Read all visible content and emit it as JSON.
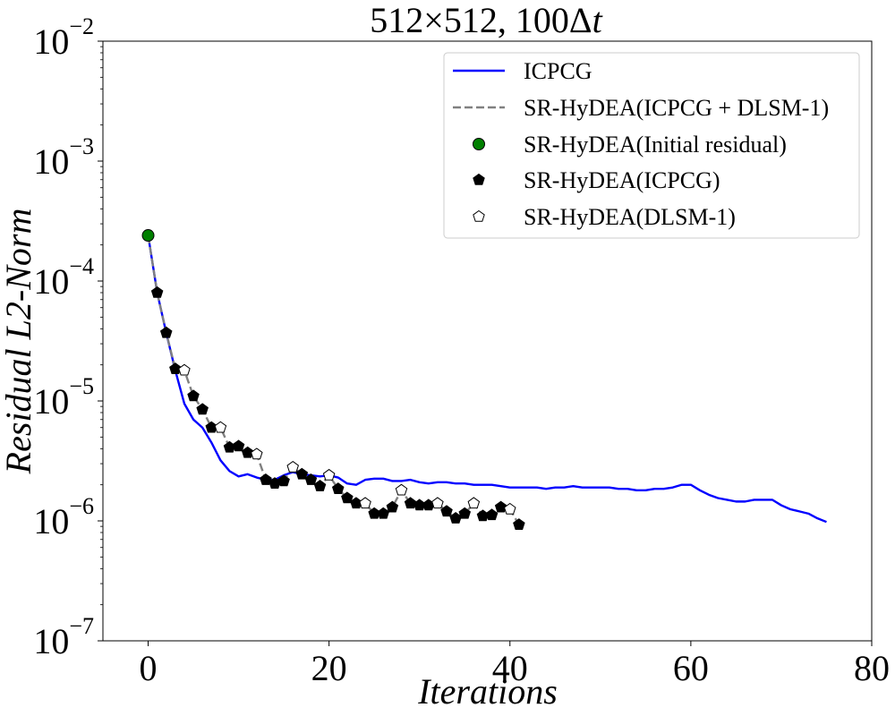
{
  "chart_data": {
    "type": "line",
    "title": "512×512, 100Δt",
    "xlabel": "Iterations",
    "ylabel": "Residual L2-Norm",
    "xlim": [
      -5,
      80
    ],
    "ylim": [
      1e-07,
      0.01
    ],
    "yscale": "log",
    "x_ticks": [
      0,
      20,
      40,
      60,
      80
    ],
    "x_tick_labels": [
      "0",
      "20",
      "40",
      "60",
      "80"
    ],
    "y_ticks": [
      {
        "value": 1e-07,
        "base": "10",
        "exp": "−7"
      },
      {
        "value": 1e-06,
        "base": "10",
        "exp": "−6"
      },
      {
        "value": 1e-05,
        "base": "10",
        "exp": "−5"
      },
      {
        "value": 0.0001,
        "base": "10",
        "exp": "−4"
      },
      {
        "value": 0.001,
        "base": "10",
        "exp": "−3"
      },
      {
        "value": 0.01,
        "base": "10",
        "exp": "−2"
      }
    ],
    "legend_position": "top-right",
    "series": [
      {
        "name": "ICPCG",
        "style": "line",
        "color": "#0000ff",
        "x": [
          0,
          1,
          2,
          3,
          4,
          5,
          6,
          7,
          8,
          9,
          10,
          11,
          12,
          13,
          14,
          15,
          16,
          17,
          18,
          19,
          20,
          21,
          22,
          23,
          24,
          25,
          26,
          27,
          28,
          29,
          30,
          31,
          32,
          33,
          34,
          35,
          36,
          37,
          38,
          39,
          40,
          41,
          42,
          43,
          44,
          45,
          46,
          47,
          48,
          49,
          50,
          51,
          52,
          53,
          54,
          55,
          56,
          57,
          58,
          59,
          60,
          61,
          62,
          63,
          64,
          65,
          66,
          67,
          68,
          69,
          70,
          71,
          72,
          73,
          74,
          75
        ],
        "y": [
          0.00024,
          8e-05,
          3.7e-05,
          1.8e-05,
          9.5e-06,
          7e-06,
          6e-06,
          4.5e-06,
          3.2e-06,
          2.6e-06,
          2.35e-06,
          2.45e-06,
          2.3e-06,
          2.2e-06,
          2.2e-06,
          2.4e-06,
          2.55e-06,
          2.45e-06,
          2.4e-06,
          2.35e-06,
          2.4e-06,
          2.3e-06,
          2.05e-06,
          2e-06,
          2.2e-06,
          2.25e-06,
          2.25e-06,
          2.15e-06,
          2.15e-06,
          2.2e-06,
          2.1e-06,
          2.05e-06,
          2.1e-06,
          2.1e-06,
          2.05e-06,
          2.05e-06,
          2e-06,
          2e-06,
          2e-06,
          1.95e-06,
          1.9e-06,
          1.9e-06,
          1.9e-06,
          1.9e-06,
          1.85e-06,
          1.9e-06,
          1.9e-06,
          1.95e-06,
          1.9e-06,
          1.9e-06,
          1.9e-06,
          1.9e-06,
          1.85e-06,
          1.85e-06,
          1.8e-06,
          1.8e-06,
          1.85e-06,
          1.85e-06,
          1.9e-06,
          2e-06,
          2e-06,
          1.8e-06,
          1.65e-06,
          1.55e-06,
          1.5e-06,
          1.45e-06,
          1.45e-06,
          1.5e-06,
          1.5e-06,
          1.5e-06,
          1.35e-06,
          1.25e-06,
          1.2e-06,
          1.15e-06,
          1.05e-06,
          9.8e-07
        ]
      },
      {
        "name": "SR-HyDEA(ICPCG + DLSM-1)",
        "style": "dashed",
        "color": "#808080",
        "x": [
          0,
          1,
          2,
          3,
          4,
          5,
          6,
          7,
          8,
          9,
          10,
          11,
          12,
          13,
          14,
          15,
          16,
          17,
          18,
          19,
          20,
          21,
          22,
          23,
          24,
          25,
          26,
          27,
          28,
          29,
          30,
          31,
          32,
          33,
          34,
          35,
          36,
          37,
          38,
          39,
          40,
          41
        ],
        "y": [
          0.00024,
          8e-05,
          3.7e-05,
          1.85e-05,
          1.8e-05,
          1.1e-05,
          8.5e-06,
          6e-06,
          6e-06,
          4.1e-06,
          4.2e-06,
          3.7e-06,
          3.6e-06,
          2.2e-06,
          2.05e-06,
          2.15e-06,
          2.8e-06,
          2.45e-06,
          2.2e-06,
          1.95e-06,
          2.4e-06,
          1.85e-06,
          1.55e-06,
          1.4e-06,
          1.4e-06,
          1.15e-06,
          1.15e-06,
          1.3e-06,
          1.8e-06,
          1.4e-06,
          1.35e-06,
          1.35e-06,
          1.4e-06,
          1.2e-06,
          1.05e-06,
          1.15e-06,
          1.4e-06,
          1.1e-06,
          1.12e-06,
          1.3e-06,
          1.25e-06,
          9.3e-07
        ]
      },
      {
        "name": "SR-HyDEA(Initial residual)",
        "style": "marker-circle",
        "color": "#008000",
        "x": [
          0
        ],
        "y": [
          0.00024
        ]
      },
      {
        "name": "SR-HyDEA(ICPCG)",
        "style": "marker-pentagon-filled",
        "color": "#000000",
        "x": [
          1,
          2,
          3,
          5,
          6,
          7,
          9,
          10,
          11,
          13,
          14,
          15,
          17,
          18,
          19,
          21,
          22,
          23,
          25,
          26,
          27,
          29,
          30,
          31,
          33,
          34,
          35,
          37,
          38,
          39,
          41
        ],
        "y": [
          8e-05,
          3.7e-05,
          1.85e-05,
          1.1e-05,
          8.5e-06,
          6e-06,
          4.1e-06,
          4.2e-06,
          3.7e-06,
          2.2e-06,
          2.05e-06,
          2.15e-06,
          2.45e-06,
          2.2e-06,
          1.95e-06,
          1.85e-06,
          1.55e-06,
          1.4e-06,
          1.15e-06,
          1.15e-06,
          1.3e-06,
          1.4e-06,
          1.35e-06,
          1.35e-06,
          1.2e-06,
          1.05e-06,
          1.15e-06,
          1.1e-06,
          1.12e-06,
          1.3e-06,
          9.3e-07
        ]
      },
      {
        "name": "SR-HyDEA(DLSM-1)",
        "style": "marker-pentagon-open",
        "color": "#000000",
        "x": [
          4,
          8,
          12,
          16,
          20,
          24,
          28,
          32,
          36,
          40
        ],
        "y": [
          1.8e-05,
          6e-06,
          3.6e-06,
          2.8e-06,
          2.4e-06,
          1.4e-06,
          1.8e-06,
          1.4e-06,
          1.4e-06,
          1.25e-06
        ]
      }
    ]
  }
}
